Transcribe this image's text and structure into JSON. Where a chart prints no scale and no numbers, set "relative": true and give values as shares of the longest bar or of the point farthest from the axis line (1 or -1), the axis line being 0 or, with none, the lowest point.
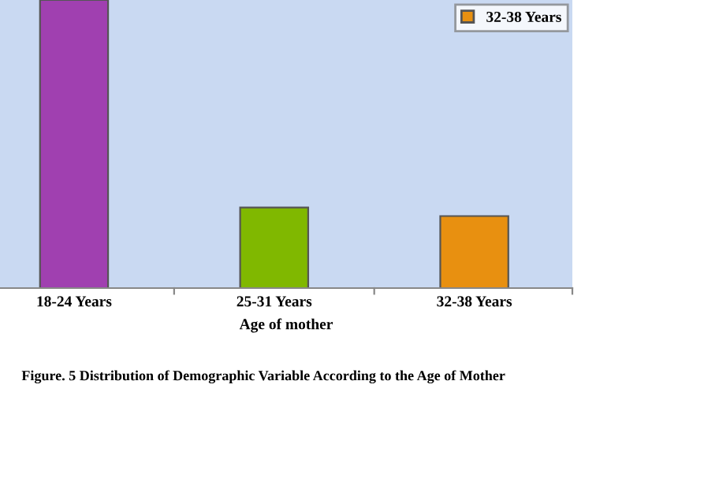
{
  "chart_data": {
    "type": "bar",
    "relative": true,
    "xlabel": "Age of mother",
    "categories": [
      "18-24 Years",
      "25-31 Years",
      "32-38 Years"
    ],
    "series": [
      {
        "color": "#a040b0",
        "values": [
          1,
          null,
          null
        ]
      },
      {
        "color": "#80b800",
        "values": [
          null,
          0.28,
          null
        ]
      },
      {
        "name": "32-38 Years",
        "color": "#e89010",
        "values": [
          null,
          null,
          0.25
        ]
      }
    ],
    "legend": "top right",
    "grid": false,
    "annotations": [
      "Figure. 5 Distribution of Demographic Variable According to the Age of Mother"
    ]
  }
}
